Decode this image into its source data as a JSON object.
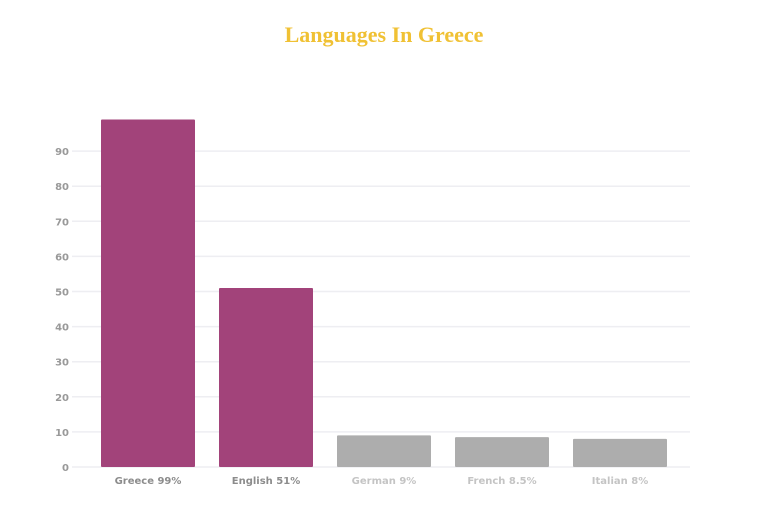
{
  "chart_data": {
    "type": "bar",
    "title": "Languages In Greece",
    "categories": [
      "Greece 99%",
      "English 51%",
      "German 9%",
      "French 8.5%",
      "Italian 8%"
    ],
    "values": [
      99,
      51,
      9,
      8.5,
      8
    ],
    "bar_colors": [
      "#a2437a",
      "#a2437a",
      "#adadad",
      "#adadad",
      "#adadad"
    ],
    "label_colors": [
      "#8c8c8c",
      "#8c8c8c",
      "#c4c4c4",
      "#c4c4c4",
      "#c4c4c4"
    ],
    "yticks": [
      0,
      10,
      20,
      30,
      40,
      50,
      60,
      70,
      80,
      90
    ],
    "ylim": [
      0,
      100
    ],
    "xlabel": "",
    "ylabel": "",
    "grid": true,
    "title_color": "#f0c134"
  }
}
